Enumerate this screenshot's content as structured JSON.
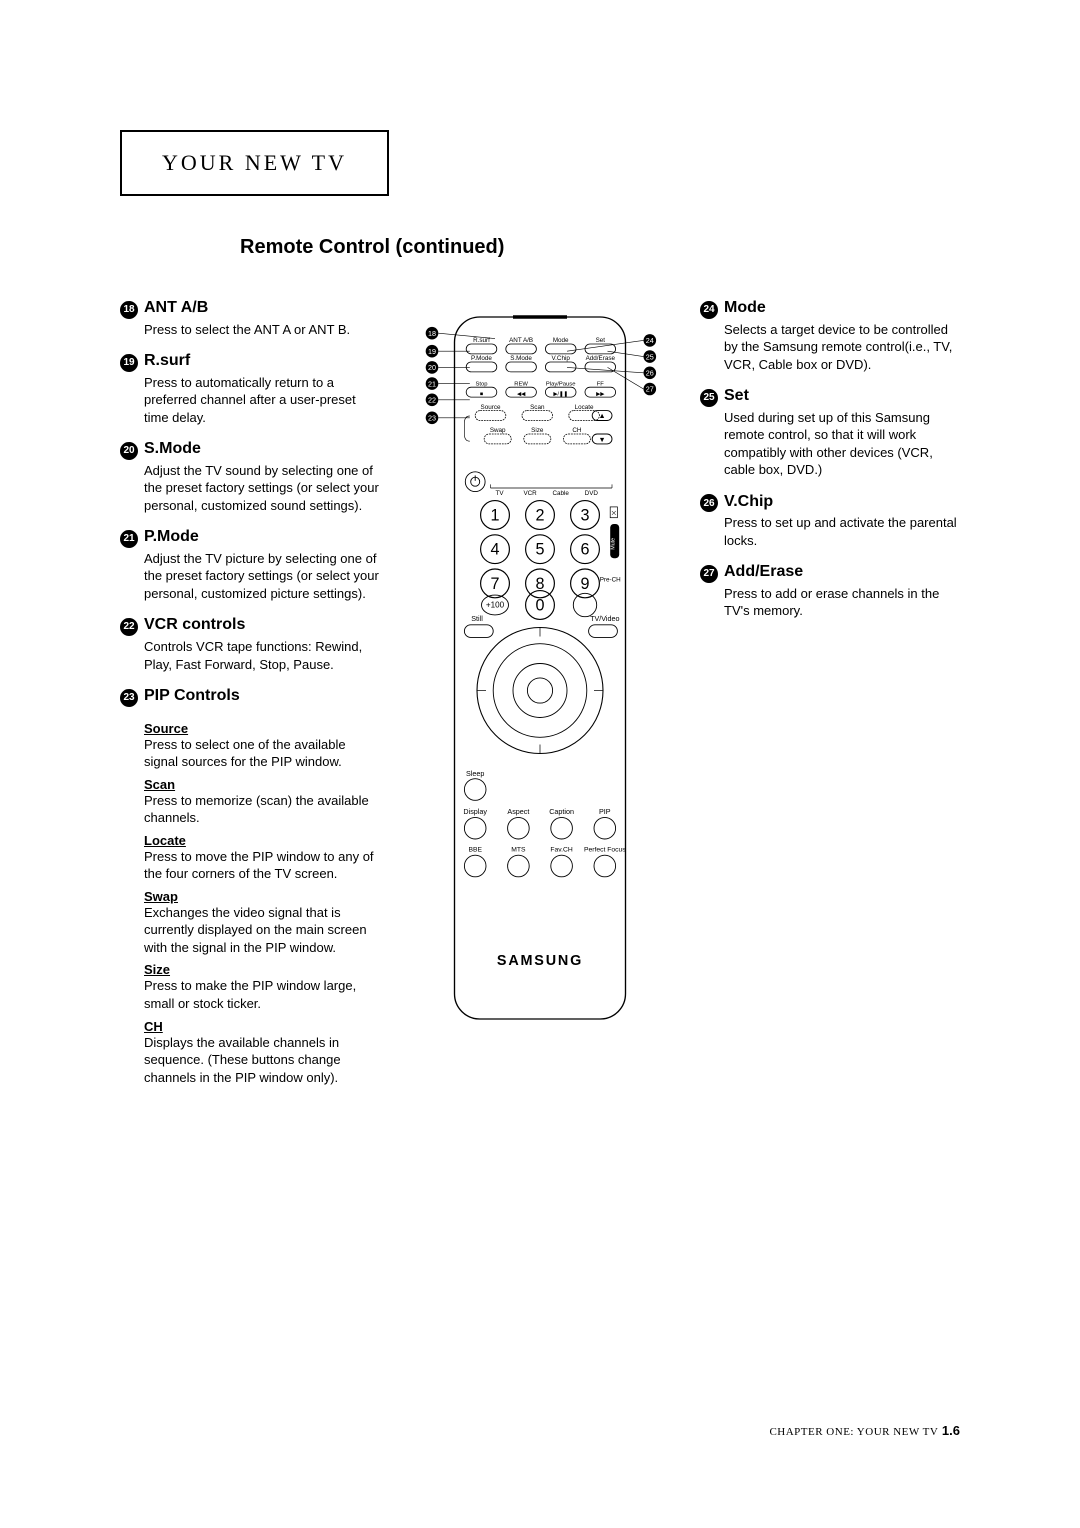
{
  "page": {
    "title_box": "YOUR NEW TV",
    "subtitle": "Remote Control (continued)",
    "footer_chapter": "CHAPTER ONE: YOUR NEW TV",
    "footer_page": "1.6"
  },
  "left_items": [
    {
      "num": "18",
      "title": "ANT A/B",
      "desc": "Press to select the ANT A or ANT B."
    },
    {
      "num": "19",
      "title": "R.surf",
      "desc": "Press to automatically return to a preferred channel after a user-preset time delay."
    },
    {
      "num": "20",
      "title": "S.Mode",
      "desc": "Adjust the TV sound by selecting one of the preset factory settings (or select your personal, customized sound settings)."
    },
    {
      "num": "21",
      "title": "P.Mode",
      "desc": "Adjust the TV picture by selecting one of the preset factory settings (or select your personal, customized picture settings)."
    },
    {
      "num": "22",
      "title": "VCR controls",
      "desc": "Controls VCR tape functions: Rewind, Play, Fast Forward, Stop, Pause."
    },
    {
      "num": "23",
      "title": "PIP Controls",
      "desc": ""
    }
  ],
  "pip_subs": [
    {
      "head": "Source",
      "desc": "Press to select one of the available signal sources for the PIP window."
    },
    {
      "head": "Scan",
      "desc": "Press to memorize (scan) the available channels."
    },
    {
      "head": "Locate",
      "desc": "Press to move the PIP window to any of the four corners of the TV screen."
    },
    {
      "head": "Swap",
      "desc": "Exchanges the video signal that is currently displayed on the main screen with the signal in the PIP window."
    },
    {
      "head": "Size",
      "desc": "Press to make the PIP window large, small or stock ticker."
    },
    {
      "head": "CH",
      "desc": "Displays the available channels in sequence. (These buttons change channels in the PIP window only)."
    }
  ],
  "right_items": [
    {
      "num": "24",
      "title": "Mode",
      "desc": "Selects a target device to be controlled by the Samsung remote control(i.e., TV, VCR, Cable box or DVD)."
    },
    {
      "num": "25",
      "title": "Set",
      "desc": "Used during set up of this Samsung remote control, so that it will work compatibly with other devices (VCR, cable box, DVD.)"
    },
    {
      "num": "26",
      "title": "V.Chip",
      "desc": "Press to set up and activate the parental locks."
    },
    {
      "num": "27",
      "title": "Add/Erase",
      "desc": "Press to add or erase channels in the TV's memory."
    }
  ],
  "remote": {
    "brand": "SAMSUNG",
    "top_labels_row1": [
      "R.surf",
      "ANT A/B",
      "Mode",
      "Set"
    ],
    "top_labels_row2": [
      "P.Mode",
      "S.Mode",
      "V.Chip",
      "Add/Erase"
    ],
    "vcr_row": [
      "Stop",
      "REW",
      "Play/Pause",
      "FF"
    ],
    "pip_row": [
      "Source",
      "Scan",
      "Locate"
    ],
    "pip_row2": [
      "Swap",
      "Size",
      "CH"
    ],
    "device_row": [
      "TV",
      "VCR",
      "Cable",
      "DVD"
    ],
    "number_pad": [
      "1",
      "2",
      "3",
      "4",
      "5",
      "6",
      "7",
      "8",
      "9",
      "+100",
      "0",
      ""
    ],
    "side_labels": {
      "mute": "",
      "pre_ch": "Pre-CH"
    },
    "mid_left": "Still",
    "mid_right": "TV/Video",
    "sleep": "Sleep",
    "row_a": [
      "Display",
      "Aspect",
      "Caption",
      "PIP"
    ],
    "row_b": [
      "BBE",
      "MTS",
      "Fav.CH",
      "Perfect Focus"
    ],
    "callouts_left": [
      "18",
      "19",
      "20",
      "21",
      "22",
      "23"
    ],
    "callouts_right": [
      "24",
      "25",
      "26",
      "27"
    ]
  }
}
